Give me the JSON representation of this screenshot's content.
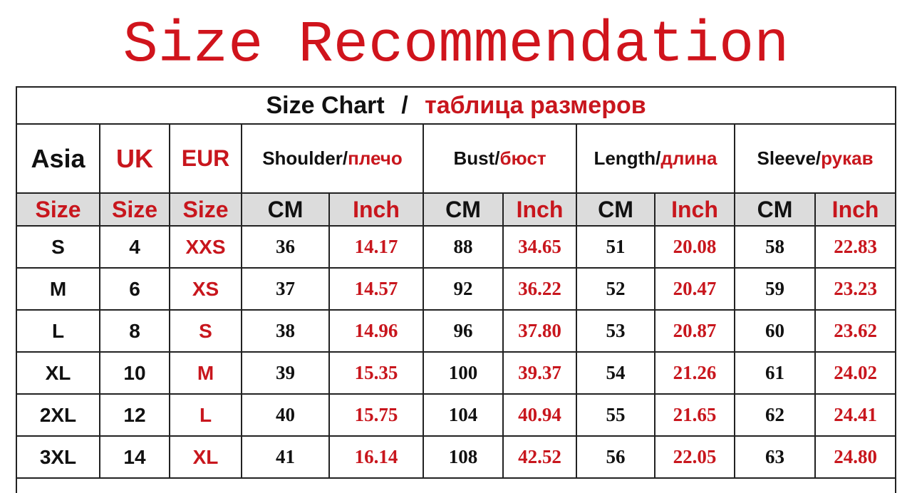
{
  "title": "Size Recommendation",
  "chart_title_en": "Size Chart",
  "chart_title_sep": "/",
  "chart_title_ru": "таблица размеров",
  "headers": {
    "asia": "Asia",
    "uk": "UK",
    "eur": "EUR",
    "shoulder_en": "Shoulder/",
    "shoulder_ru": "плечо",
    "bust_en": "Bust/",
    "bust_ru": "бюст",
    "length_en": "Length/",
    "length_ru": "длина",
    "sleeve_en": "Sleeve/",
    "sleeve_ru": "рукав"
  },
  "subheaders": [
    "Size",
    "Size",
    "Size",
    "CM",
    "Inch",
    "CM",
    "Inch",
    "CM",
    "Inch",
    "CM",
    "Inch"
  ],
  "rows": [
    [
      "S",
      "4",
      "XXS",
      "36",
      "14.17",
      "88",
      "34.65",
      "51",
      "20.08",
      "58",
      "22.83"
    ],
    [
      "M",
      "6",
      "XS",
      "37",
      "14.57",
      "92",
      "36.22",
      "52",
      "20.47",
      "59",
      "23.23"
    ],
    [
      "L",
      "8",
      "S",
      "38",
      "14.96",
      "96",
      "37.80",
      "53",
      "20.87",
      "60",
      "23.62"
    ],
    [
      "XL",
      "10",
      "M",
      "39",
      "15.35",
      "100",
      "39.37",
      "54",
      "21.26",
      "61",
      "24.02"
    ],
    [
      "2XL",
      "12",
      "L",
      "40",
      "15.75",
      "104",
      "40.94",
      "55",
      "21.65",
      "62",
      "24.41"
    ],
    [
      "3XL",
      "14",
      "XL",
      "41",
      "16.14",
      "108",
      "42.52",
      "56",
      "22.05",
      "63",
      "24.80"
    ]
  ],
  "colors": {
    "accent_red": "#c8161d",
    "subheader_bg": "#dcdcdc",
    "text": "#111111"
  }
}
